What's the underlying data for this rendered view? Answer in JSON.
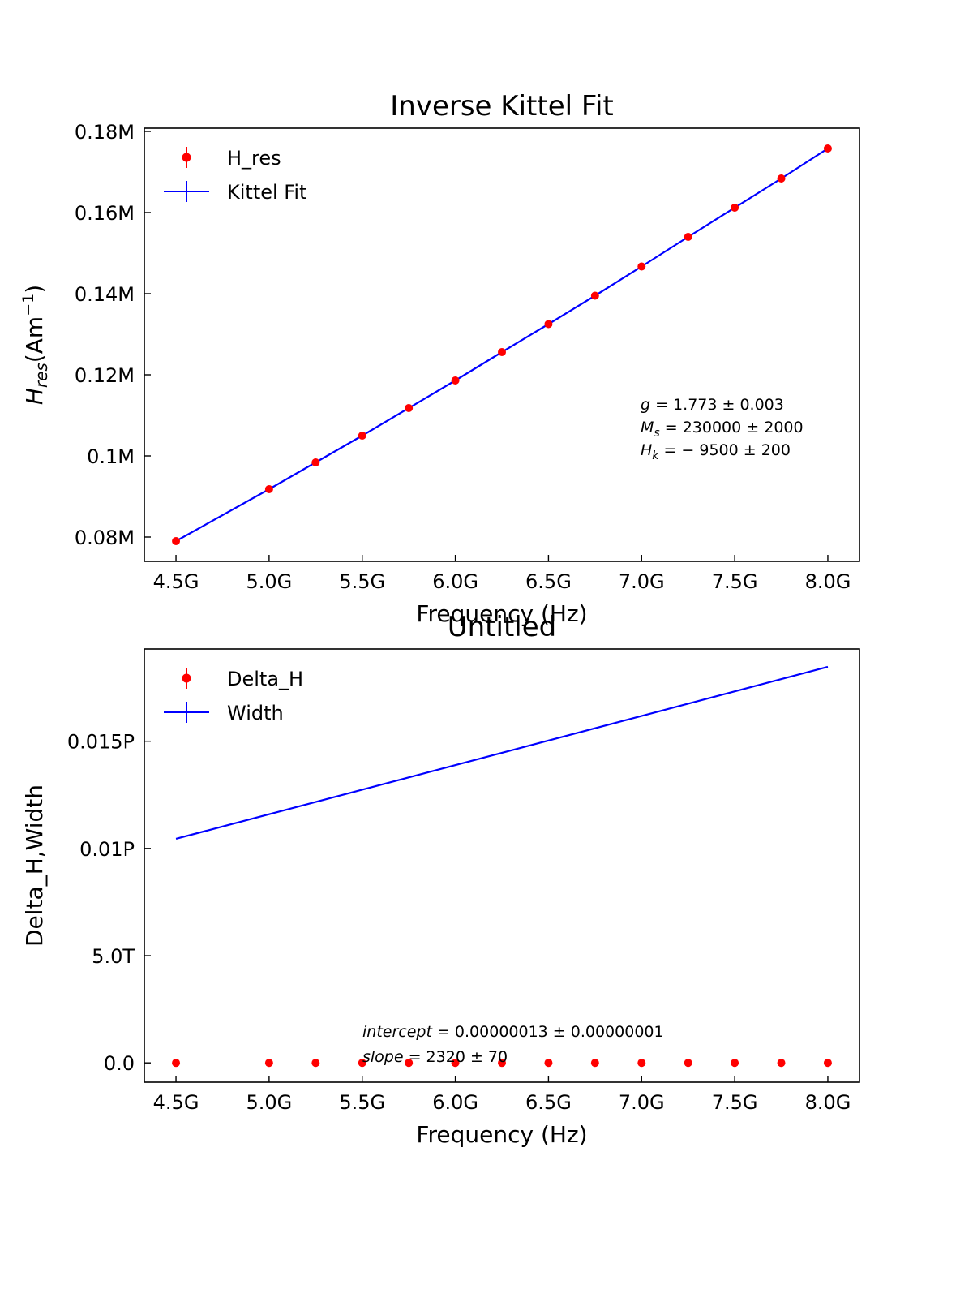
{
  "chart_data": [
    {
      "type": "line",
      "title": "Inverse Kittel Fit",
      "xlabel": "Frequency (Hz)",
      "ylabel_main": "H",
      "ylabel_sub": "res",
      "ylabel_rest": "(Am",
      "ylabel_sup": "−1",
      "ylabel_close": ")",
      "x_ticks": [
        4500000000.0,
        5000000000.0,
        5500000000.0,
        6000000000.0,
        6500000000.0,
        7000000000.0,
        7500000000.0,
        8000000000.0
      ],
      "x_tick_labels": [
        "4.5G",
        "5.0G",
        "5.5G",
        "6.0G",
        "6.5G",
        "7.0G",
        "7.5G",
        "8.0G"
      ],
      "y_ticks": [
        80000,
        100000,
        120000,
        140000,
        160000,
        180000
      ],
      "y_tick_labels": [
        "0.08M",
        "0.1M",
        "0.12M",
        "0.14M",
        "0.16M",
        "0.18M"
      ],
      "xlim": [
        4330000000.0,
        8170000000.0
      ],
      "ylim": [
        74000,
        180800
      ],
      "legend_position": "upper-left",
      "series": [
        {
          "name": "H_res",
          "kind": "scatter",
          "color": "#ff0000",
          "x": [
            4500000000.0,
            5000000000.0,
            5250000000.0,
            5500000000.0,
            5750000000.0,
            6000000000.0,
            6250000000.0,
            6500000000.0,
            6750000000.0,
            7000000000.0,
            7250000000.0,
            7500000000.0,
            7750000000.0,
            8000000000.0
          ],
          "y": [
            79000,
            91800,
            98400,
            105000,
            111800,
            118600,
            125600,
            132500,
            139500,
            146700,
            154000,
            161200,
            168400,
            175800
          ]
        },
        {
          "name": "Kittel Fit",
          "kind": "line",
          "color": "#0000ff",
          "x": [
            4500000000.0,
            5000000000.0,
            5250000000.0,
            5500000000.0,
            5750000000.0,
            6000000000.0,
            6250000000.0,
            6500000000.0,
            6750000000.0,
            7000000000.0,
            7250000000.0,
            7500000000.0,
            7750000000.0,
            8000000000.0
          ],
          "y": [
            79000,
            91800,
            98400,
            105000,
            111800,
            118600,
            125600,
            132500,
            139500,
            146700,
            154000,
            161200,
            168400,
            175800
          ]
        }
      ],
      "annotations": [
        {
          "name": "g",
          "sub": "",
          "text": " = 1.773 ± 0.003"
        },
        {
          "name": "M",
          "sub": "s",
          "text": " = 230000 ± 2000"
        },
        {
          "name": "H",
          "sub": "k",
          "text": " = − 9500 ± 200"
        }
      ]
    },
    {
      "type": "line",
      "title": "Untitled",
      "xlabel": "Frequency (Hz)",
      "ylabel": "Delta_H,Width",
      "x_ticks": [
        4500000000.0,
        5000000000.0,
        5500000000.0,
        6000000000.0,
        6500000000.0,
        7000000000.0,
        7500000000.0,
        8000000000.0
      ],
      "x_tick_labels": [
        "4.5G",
        "5.0G",
        "5.5G",
        "6.0G",
        "6.5G",
        "7.0G",
        "7.5G",
        "8.0G"
      ],
      "y_ticks": [
        0,
        5000000000000.0,
        10000000000000.0,
        15000000000000.0
      ],
      "y_tick_labels": [
        "0.0",
        "5.0T",
        "0.01P",
        "0.015P"
      ],
      "xlim": [
        4330000000.0,
        8170000000.0
      ],
      "ylim": [
        -900000000000.0,
        19300000000000.0
      ],
      "legend_position": "upper-left",
      "series": [
        {
          "name": "Delta_H",
          "kind": "scatter",
          "color": "#ff0000",
          "x": [
            4500000000.0,
            5000000000.0,
            5250000000.0,
            5500000000.0,
            5750000000.0,
            6000000000.0,
            6250000000.0,
            6500000000.0,
            6750000000.0,
            7000000000.0,
            7250000000.0,
            7500000000.0,
            7750000000.0,
            8000000000.0
          ],
          "y": [
            0,
            0,
            0,
            0,
            0,
            0,
            0,
            0,
            0,
            0,
            0,
            0,
            0,
            0
          ]
        },
        {
          "name": "Width",
          "kind": "line",
          "color": "#0000ff",
          "x": [
            4500000000.0,
            8000000000.0
          ],
          "y": [
            10450000000000.0,
            18470000000000.0
          ]
        }
      ],
      "annotations": [
        {
          "name": "intercept",
          "text": " = 0.00000013 ± 0.00000001"
        },
        {
          "name": "slope",
          "text": " = 2320 ± 70"
        }
      ]
    }
  ]
}
